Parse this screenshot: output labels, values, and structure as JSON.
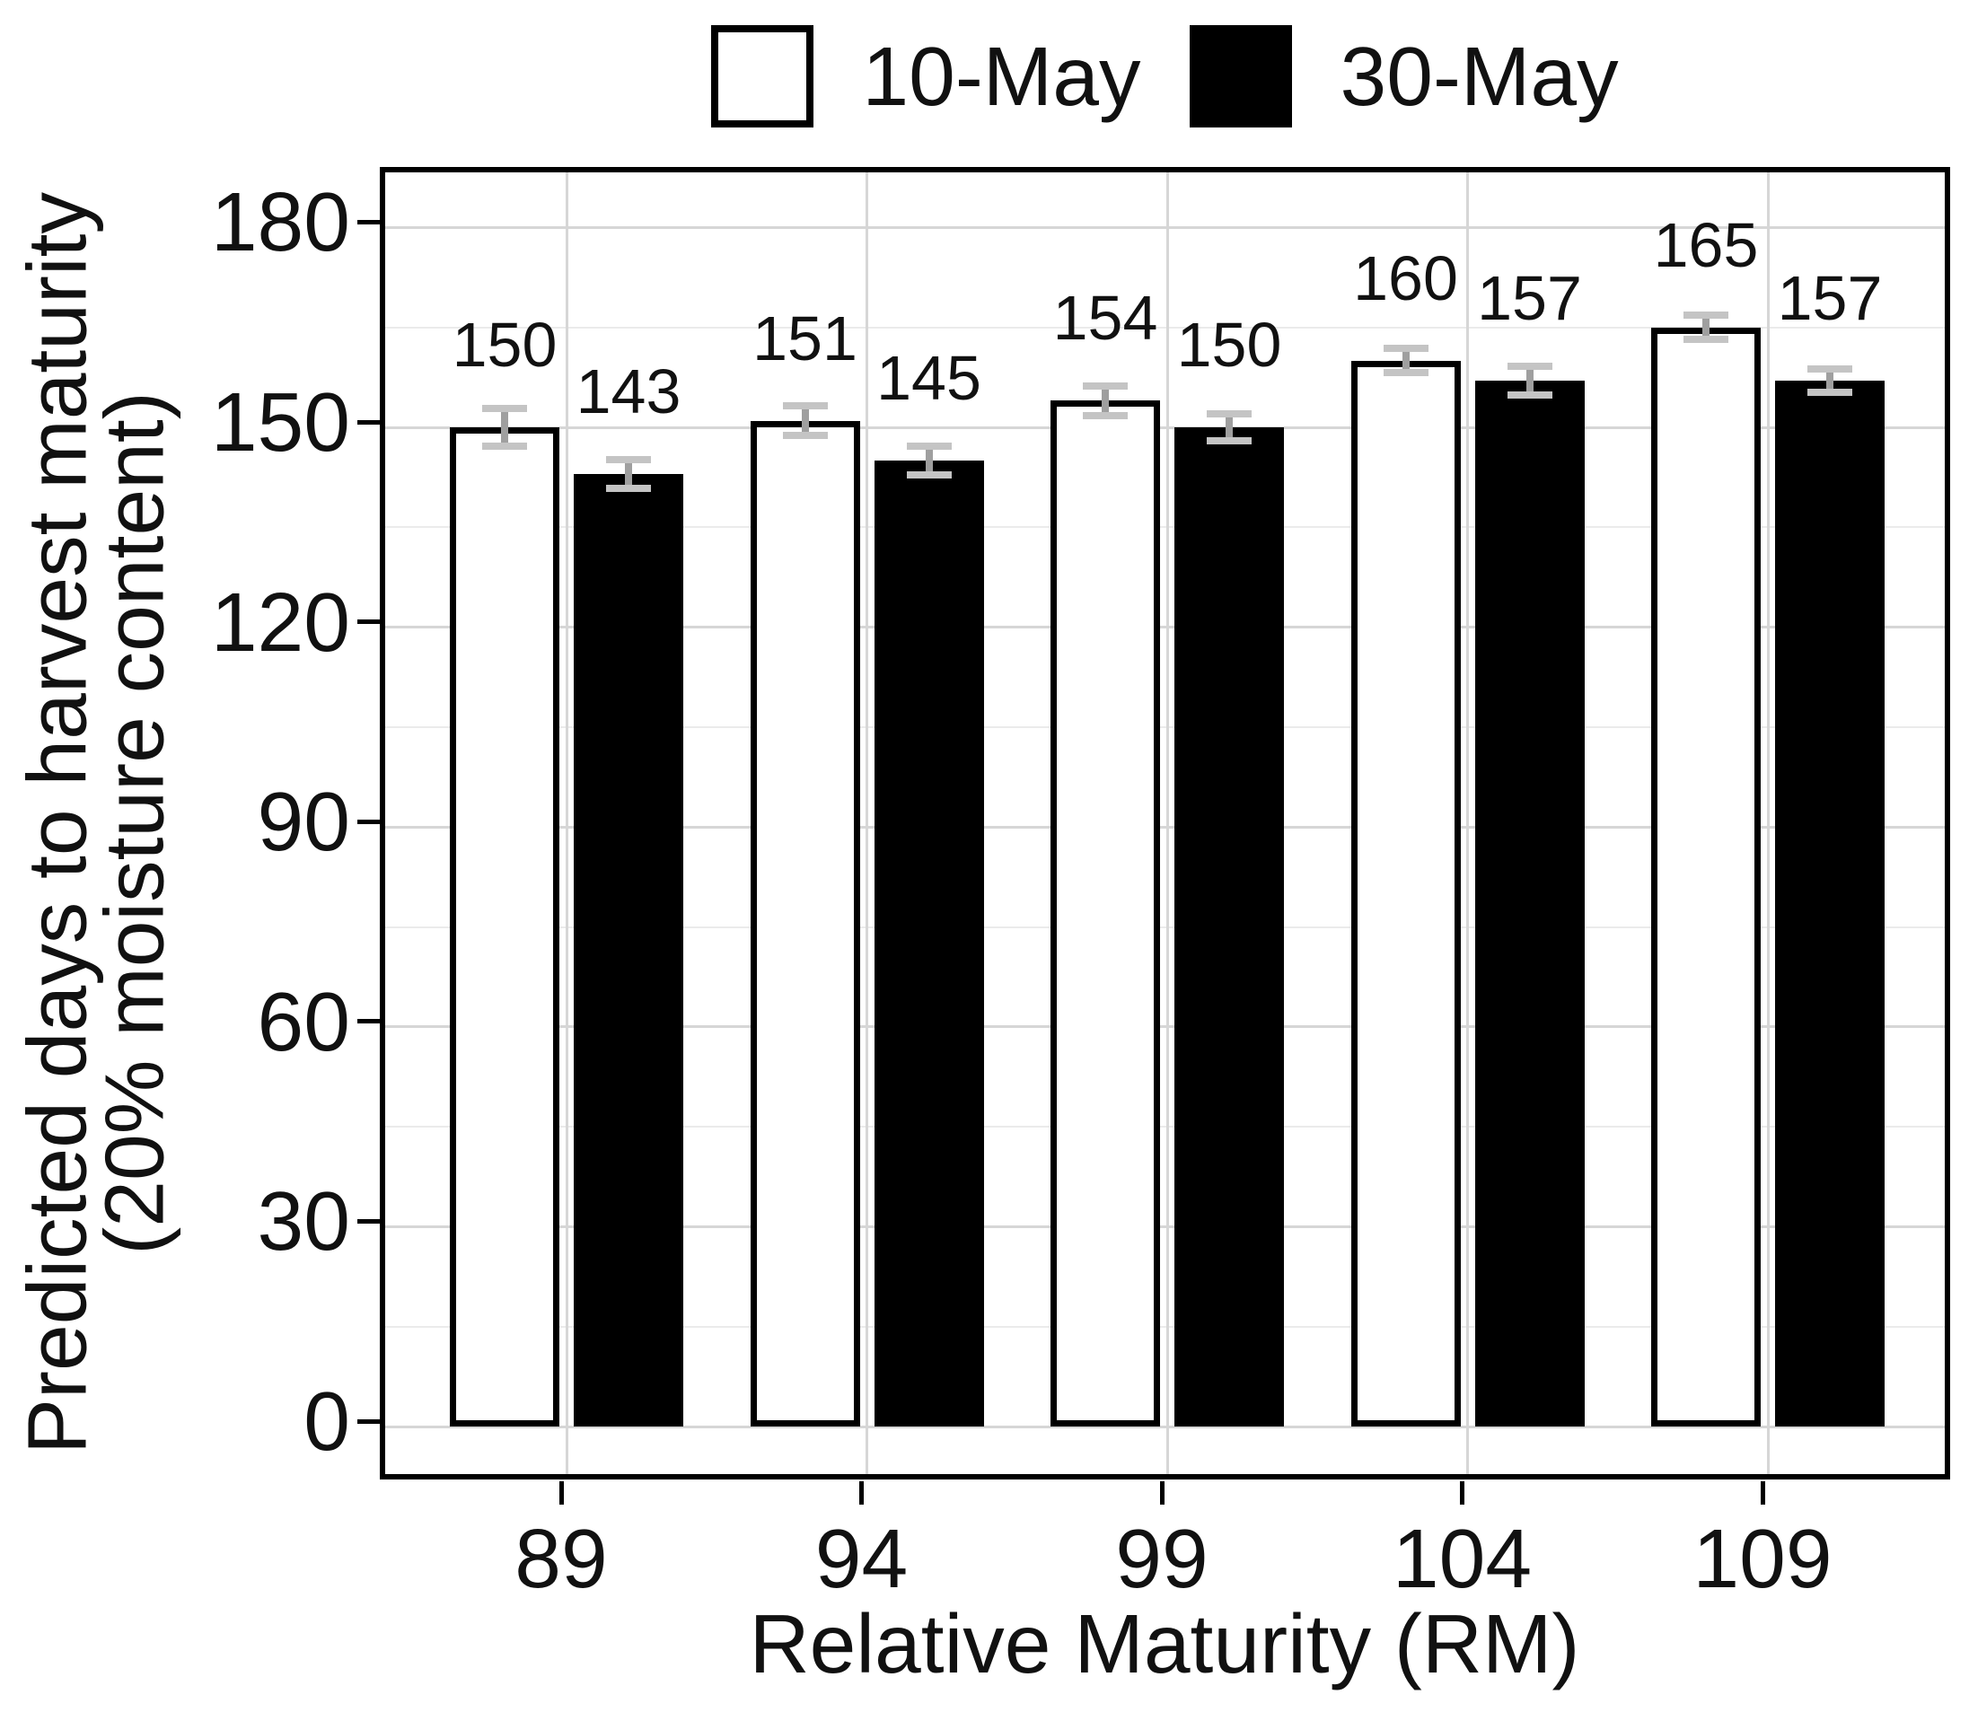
{
  "figure": {
    "background": "#ffffff"
  },
  "legend": {
    "position": "top-center",
    "items": [
      {
        "label": "10-May",
        "fill": "#ffffff",
        "border": "#000000"
      },
      {
        "label": "30-May",
        "fill": "#000000",
        "border": "#000000"
      }
    ]
  },
  "y_axis": {
    "title_line1": "Predicted days to harvest maturity",
    "title_line2": "(20% moisture content)",
    "tick_labels": [
      "0",
      "30",
      "60",
      "90",
      "120",
      "150",
      "180"
    ]
  },
  "x_axis": {
    "title": "Relative Maturity (RM)",
    "tick_labels": [
      "89",
      "94",
      "99",
      "104",
      "109"
    ]
  },
  "chart_data": {
    "type": "bar",
    "title": "",
    "categories": [
      "89",
      "94",
      "99",
      "104",
      "109"
    ],
    "series": [
      {
        "name": "10-May",
        "fill": "#ffffff",
        "border": "#000000",
        "values": [
          150,
          151,
          154,
          160,
          165
        ],
        "errors": [
          2.8,
          2.2,
          2.2,
          1.8,
          1.8
        ]
      },
      {
        "name": "30-May",
        "fill": "#000000",
        "border": "#000000",
        "values": [
          143,
          145,
          150,
          157,
          157
        ],
        "errors": [
          2.2,
          2.2,
          2.0,
          2.2,
          1.8
        ]
      }
    ],
    "bar_value_labels": {
      "10-May": [
        "150",
        "151",
        "154",
        "160",
        "165"
      ],
      "30-May": [
        "143",
        "145",
        "150",
        "157",
        "157"
      ]
    },
    "xlabel": "Relative Maturity (RM)",
    "ylabel_line1": "Predicted days to harvest maturity",
    "ylabel_line2": "(20% moisture content)",
    "ylim": [
      0,
      180
    ],
    "y_major_ticks": [
      0,
      30,
      60,
      90,
      120,
      150,
      180
    ],
    "y_minor_ticks": [
      15,
      45,
      75,
      105,
      135,
      165
    ],
    "grid": "horizontal major+minor, vertical major at category centers",
    "legend_position": "top",
    "error_bars": "gray, capped, approx +/- 2 days"
  },
  "colors": {
    "grid_major": "#d6d6d6",
    "grid_minor": "#ebebeb",
    "error_stem": "#9f9f9f",
    "error_cap": "#c4c4c4",
    "panel_border": "#000000",
    "axis_text": "#111111",
    "bar_white": "#ffffff",
    "bar_black": "#000000"
  }
}
